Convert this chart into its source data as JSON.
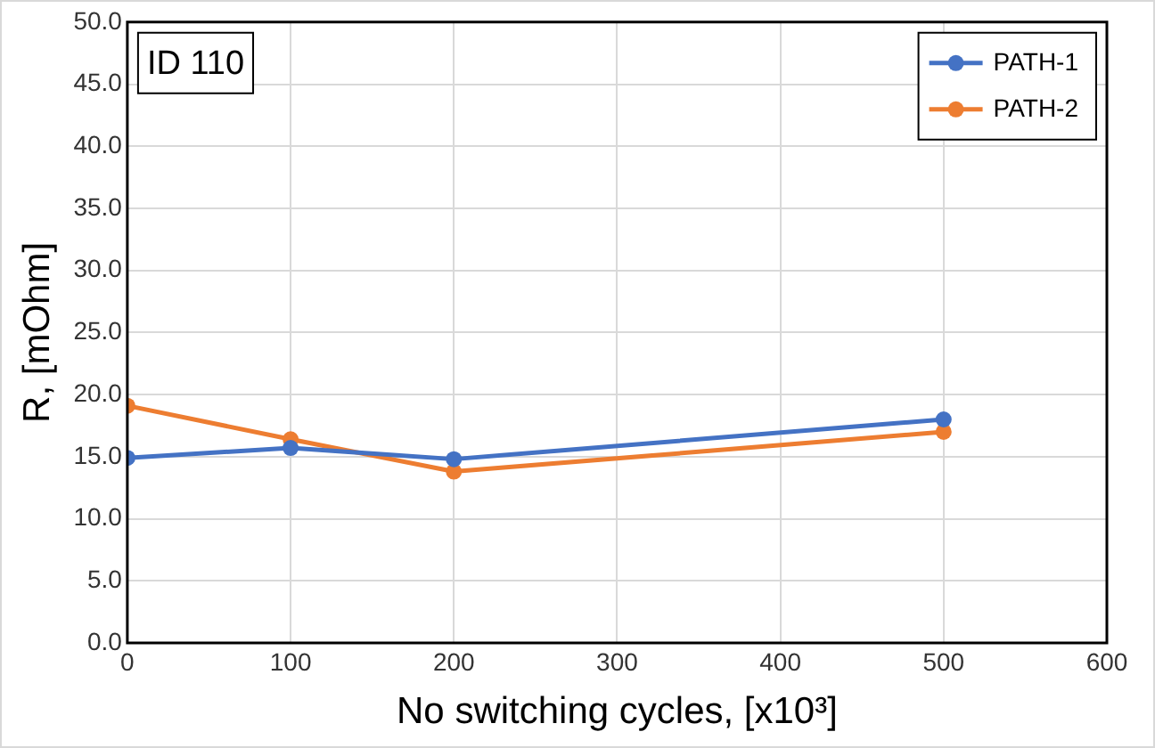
{
  "chart_data": {
    "type": "line",
    "xlabel": "No switching cycles, [x10³]",
    "ylabel": "R, [mOhm]",
    "annotations": [
      "ID 110"
    ],
    "x": [
      0,
      100,
      200,
      500
    ],
    "series": [
      {
        "name": "PATH-1",
        "color": "#4472c4",
        "values": [
          14.9,
          15.7,
          14.8,
          18.0
        ]
      },
      {
        "name": "PATH-2",
        "color": "#ed7d31",
        "values": [
          19.1,
          16.4,
          13.8,
          17.0
        ]
      }
    ],
    "xlim": [
      0,
      600
    ],
    "xticks": [
      0,
      100,
      200,
      300,
      400,
      500,
      600
    ],
    "ylim": [
      0,
      50
    ],
    "yticks": [
      {
        "value": 0,
        "label": "0.0"
      },
      {
        "value": 5,
        "label": "5.0"
      },
      {
        "value": 10,
        "label": "10.0"
      },
      {
        "value": 15,
        "label": "15.0"
      },
      {
        "value": 20,
        "label": "20.0"
      },
      {
        "value": 25,
        "label": "25.0"
      },
      {
        "value": 30,
        "label": "30.0"
      },
      {
        "value": 35,
        "label": "35.0"
      },
      {
        "value": 40,
        "label": "40.0"
      },
      {
        "value": 45,
        "label": "45.0"
      },
      {
        "value": 50,
        "label": "50.0"
      }
    ],
    "grid": true,
    "legend": "top right",
    "marker": "circle",
    "line_style": "solid"
  }
}
